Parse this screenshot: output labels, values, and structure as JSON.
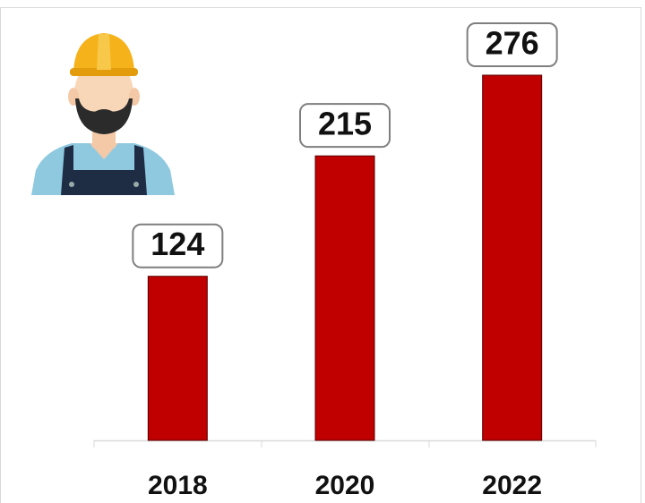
{
  "chart_data": {
    "type": "bar",
    "categories": [
      "2018",
      "2020",
      "2022"
    ],
    "values": [
      124,
      215,
      276
    ],
    "color": "#c00000"
  }
}
